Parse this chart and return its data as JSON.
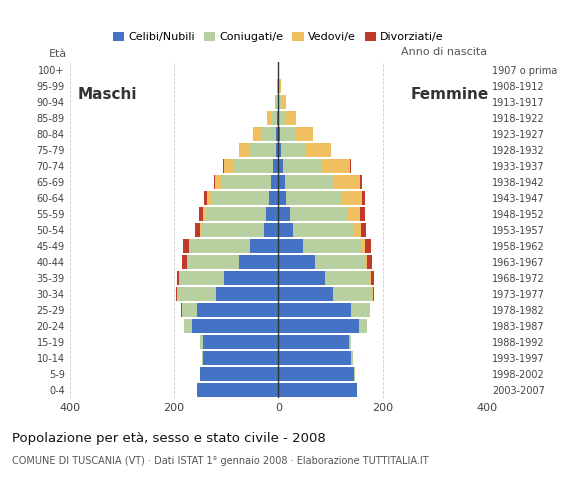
{
  "age_groups": [
    "0-4",
    "5-9",
    "10-14",
    "15-19",
    "20-24",
    "25-29",
    "30-34",
    "35-39",
    "40-44",
    "45-49",
    "50-54",
    "55-59",
    "60-64",
    "65-69",
    "70-74",
    "75-79",
    "80-84",
    "85-89",
    "90-94",
    "95-99",
    "100+"
  ],
  "birth_years": [
    "2003-2007",
    "1998-2002",
    "1993-1997",
    "1988-1992",
    "1983-1987",
    "1978-1982",
    "1973-1977",
    "1968-1972",
    "1963-1967",
    "1958-1962",
    "1953-1957",
    "1948-1952",
    "1943-1947",
    "1938-1942",
    "1933-1937",
    "1928-1932",
    "1923-1927",
    "1918-1922",
    "1913-1917",
    "1908-1912",
    "1907 o prima"
  ],
  "males_celibi": [
    155,
    150,
    145,
    145,
    165,
    155,
    120,
    105,
    75,
    55,
    28,
    24,
    18,
    14,
    10,
    5,
    4,
    2,
    0,
    0,
    0
  ],
  "males_coniugati": [
    0,
    1,
    2,
    5,
    15,
    30,
    75,
    85,
    100,
    115,
    120,
    115,
    110,
    95,
    75,
    50,
    30,
    12,
    5,
    2,
    1
  ],
  "males_vedovi": [
    0,
    0,
    0,
    0,
    0,
    0,
    0,
    0,
    1,
    2,
    3,
    5,
    8,
    12,
    20,
    20,
    15,
    8,
    2,
    1,
    0
  ],
  "males_divorziati": [
    0,
    0,
    0,
    0,
    0,
    1,
    2,
    4,
    8,
    10,
    8,
    8,
    6,
    3,
    2,
    1,
    0,
    0,
    0,
    0,
    0
  ],
  "females_celibi": [
    150,
    145,
    140,
    135,
    155,
    140,
    105,
    90,
    70,
    48,
    28,
    22,
    15,
    12,
    8,
    5,
    3,
    2,
    1,
    0,
    0
  ],
  "females_coniugati": [
    0,
    1,
    2,
    5,
    15,
    35,
    75,
    85,
    95,
    110,
    115,
    110,
    105,
    95,
    75,
    45,
    28,
    12,
    5,
    2,
    1
  ],
  "females_vedovi": [
    0,
    0,
    0,
    0,
    0,
    0,
    1,
    2,
    5,
    8,
    15,
    25,
    40,
    50,
    55,
    50,
    35,
    20,
    8,
    3,
    1
  ],
  "females_divorziati": [
    0,
    0,
    0,
    0,
    0,
    1,
    3,
    6,
    10,
    12,
    10,
    9,
    5,
    3,
    2,
    1,
    0,
    0,
    0,
    0,
    0
  ],
  "colors": {
    "celibi": "#4472c4",
    "coniugati": "#b8cfa0",
    "vedovi": "#f0c060",
    "divorziati": "#c0392b"
  },
  "title": "Popolazione per età, sesso e stato civile - 2008",
  "subtitle": "COMUNE DI TUSCANIA (VT) · Dati ISTAT 1° gennaio 2008 · Elaborazione TUTTITALIA.IT",
  "label_maschi": "Maschi",
  "label_femmine": "Femmine",
  "label_eta": "Età",
  "label_anno": "Anno di nascita",
  "xlim": 400,
  "background_color": "#ffffff",
  "grid_color": "#cccccc"
}
